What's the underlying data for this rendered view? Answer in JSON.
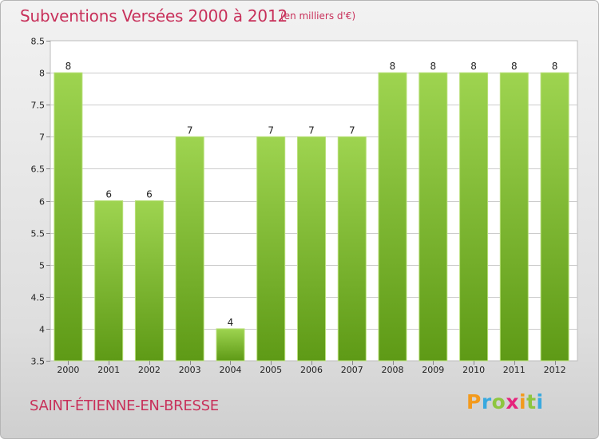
{
  "title": "Subventions Versées 2000 à 2012",
  "unit_note": "(en milliers d'€)",
  "commune": "SAINT-ÉTIENNE-EN-BRESSE",
  "logo_text": "Proxiti",
  "colors": {
    "title": "#c8305a",
    "bar_top": "#9ed450",
    "bar_bottom": "#5e9a16",
    "grid": "#cccccc",
    "axis_text": "#222222"
  },
  "chart_data": {
    "type": "bar",
    "title": "Subventions Versées 2000 à 2012",
    "categories": [
      "2000",
      "2001",
      "2002",
      "2003",
      "2004",
      "2005",
      "2006",
      "2007",
      "2008",
      "2009",
      "2010",
      "2011",
      "2012"
    ],
    "values": [
      8,
      6,
      6,
      7,
      4,
      7,
      7,
      7,
      8,
      8,
      8,
      8,
      8
    ],
    "data_labels": [
      "8",
      "6",
      "6",
      "7",
      "4",
      "7",
      "7",
      "7",
      "8",
      "8",
      "8",
      "8",
      "8"
    ],
    "ylim": [
      3.5,
      8.5
    ],
    "yticks": [
      3.5,
      4,
      4.5,
      5,
      5.5,
      6,
      6.5,
      7,
      7.5,
      8,
      8.5
    ],
    "ytick_labels": [
      "3.5",
      "4",
      "4.5",
      "5",
      "5.5",
      "6",
      "6.5",
      "7",
      "7.5",
      "8",
      "8.5"
    ],
    "xlabel": "",
    "ylabel": "",
    "grid": true,
    "legend": "none"
  }
}
